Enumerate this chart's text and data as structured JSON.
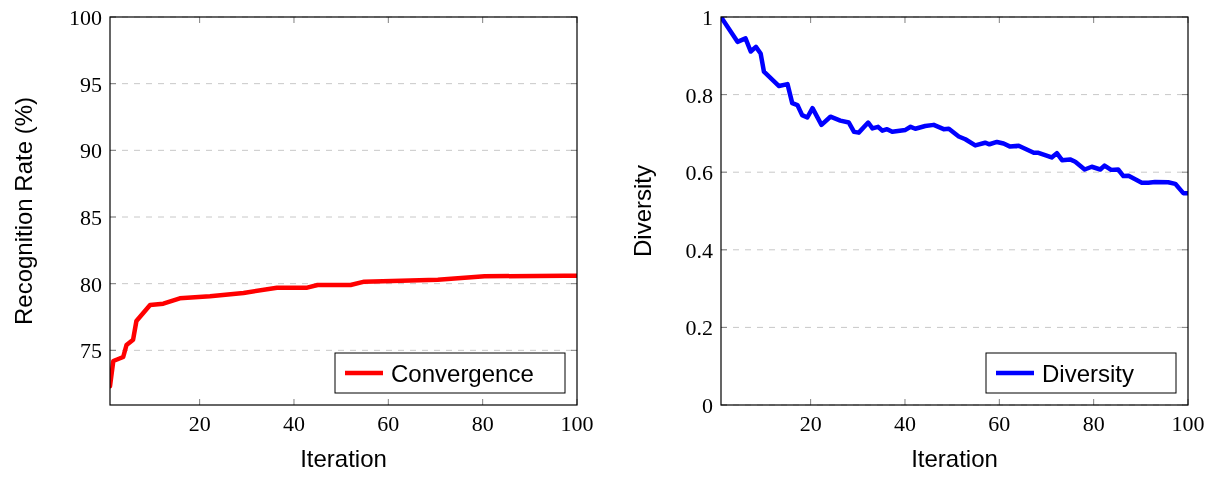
{
  "chart_data": [
    {
      "type": "line",
      "xlabel": "Iteration",
      "ylabel": "Recognition Rate (%)",
      "xlim": [
        1,
        100
      ],
      "xticks": [
        20,
        40,
        60,
        80,
        100
      ],
      "ylim": [
        70.9,
        100
      ],
      "yticks": [
        75,
        80,
        85,
        90,
        95,
        100
      ],
      "grid": "y",
      "legend": "bottom right",
      "series": [
        {
          "name": "Convergence",
          "color": "#ff0000",
          "x": [
            1,
            1.7,
            3.8,
            4.5,
            5.9,
            6.6,
            9.5,
            12.3,
            15.8,
            22.2,
            29.3,
            36.4,
            42.8,
            45,
            52,
            54.9,
            70.5,
            80.4,
            97.4,
            100
          ],
          "values": [
            72.3,
            74.2,
            74.5,
            75.4,
            75.8,
            77.2,
            78.4,
            78.5,
            78.9,
            79.05,
            79.3,
            79.7,
            79.7,
            79.9,
            79.9,
            80.15,
            80.3,
            80.55,
            80.6,
            80.6
          ]
        }
      ]
    },
    {
      "type": "line",
      "xlabel": "Iteration",
      "ylabel": "Diversity",
      "xlim": [
        1,
        100
      ],
      "xticks": [
        20,
        40,
        60,
        80,
        100
      ],
      "ylim": [
        0,
        1
      ],
      "yticks": [
        0,
        0.2,
        0.4,
        0.6,
        0.8,
        1
      ],
      "grid": "y",
      "legend": "bottom right",
      "series": [
        {
          "name": "Diversity",
          "color": "#0000ff",
          "x": [
            1,
            4.5,
            6.2,
            7.3,
            8.4,
            9.4,
            10.1,
            13.3,
            15.1,
            16.1,
            17.2,
            18.2,
            19.3,
            20.4,
            22.3,
            24.2,
            26.3,
            28.1,
            29.2,
            30.2,
            32.2,
            33.1,
            34.3,
            35.2,
            36.2,
            37.3,
            40.1,
            41.2,
            42.2,
            44.3,
            46.1,
            48.2,
            49.3,
            51.4,
            52.8,
            54.9,
            57,
            57.9,
            59.5,
            60.9,
            62.3,
            64.1,
            67.3,
            68.3,
            71.1,
            72.2,
            73.3,
            75,
            76.1,
            78.1,
            79.6,
            81.4,
            82.3,
            83.7,
            85.2,
            86.3,
            87.4,
            90.2,
            91.6,
            93,
            95.8,
            97.3,
            99,
            100
          ],
          "values": [
            1,
            0.936,
            0.945,
            0.911,
            0.923,
            0.906,
            0.859,
            0.822,
            0.827,
            0.778,
            0.773,
            0.747,
            0.741,
            0.765,
            0.722,
            0.743,
            0.733,
            0.728,
            0.704,
            0.702,
            0.728,
            0.713,
            0.717,
            0.707,
            0.711,
            0.704,
            0.709,
            0.717,
            0.712,
            0.719,
            0.722,
            0.711,
            0.712,
            0.692,
            0.685,
            0.669,
            0.676,
            0.672,
            0.678,
            0.674,
            0.666,
            0.668,
            0.65,
            0.65,
            0.638,
            0.649,
            0.631,
            0.633,
            0.627,
            0.607,
            0.614,
            0.607,
            0.617,
            0.606,
            0.607,
            0.59,
            0.591,
            0.573,
            0.573,
            0.575,
            0.574,
            0.57,
            0.546,
            0.546
          ]
        }
      ]
    }
  ]
}
